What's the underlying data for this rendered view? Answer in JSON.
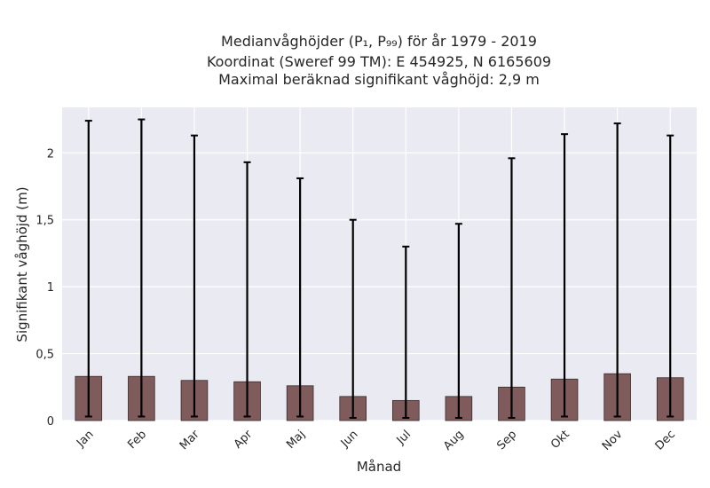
{
  "chart_data": {
    "type": "bar",
    "title_lines": [
      "Medianvåghöjder (P₁, P₉₉) för år 1979 - 2019",
      "Koordinat (Sweref 99 TM): E 454925, N 6165609",
      "Maximal beräknad signifikant våghöjd: 2,9 m"
    ],
    "xlabel": "Månad",
    "ylabel": "Signifikant våghöjd (m)",
    "categories": [
      "Jan",
      "Feb",
      "Mar",
      "Apr",
      "Maj",
      "Jun",
      "Jul",
      "Aug",
      "Sep",
      "Okt",
      "Nov",
      "Dec"
    ],
    "values": [
      0.33,
      0.33,
      0.3,
      0.29,
      0.26,
      0.18,
      0.15,
      0.18,
      0.25,
      0.31,
      0.35,
      0.32
    ],
    "p1": [
      0.03,
      0.03,
      0.03,
      0.03,
      0.03,
      0.02,
      0.02,
      0.02,
      0.02,
      0.03,
      0.03,
      0.03
    ],
    "p99": [
      2.24,
      2.25,
      2.13,
      1.93,
      1.81,
      1.5,
      1.3,
      1.47,
      1.96,
      2.14,
      2.22,
      2.13
    ],
    "ylim": [
      0,
      2.34
    ],
    "yticks": [
      0,
      0.5,
      1,
      1.5,
      2
    ],
    "ytick_labels": [
      "0",
      "0,5",
      "1",
      "1,5",
      "2"
    ],
    "grid": true,
    "colors": {
      "bar": "#7f5b5b",
      "bar_edge": "#3a2a2a",
      "error_bar": "#000000",
      "plot_background": "#eaeaf2",
      "grid": "#ffffff"
    }
  }
}
